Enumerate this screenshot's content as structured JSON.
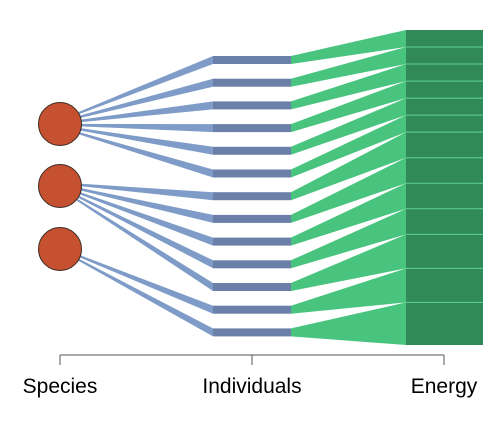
{
  "axis": {
    "labels": [
      "Species",
      "Individuals",
      "Energy"
    ]
  },
  "colors": {
    "species_fill": "#c65130",
    "species_stroke": "#3a2a22",
    "fan_species": "#7f9cc8",
    "individual_bar": "#6a80a8",
    "fan_energy": "#48c47e",
    "energy_block": "#31895a",
    "energy_divider": "#5fd293",
    "axis_line": "#555555"
  },
  "chart_data": {
    "type": "diagram",
    "stages": [
      "Species",
      "Individuals",
      "Energy"
    ],
    "species_count": 3,
    "individuals_per_species": [
      6,
      5,
      2
    ],
    "individual_count": 13,
    "energy_shares": [
      1,
      1,
      1,
      1,
      1,
      1,
      1.5,
      1.5,
      1.5,
      1.5,
      2,
      2,
      2.5
    ]
  }
}
